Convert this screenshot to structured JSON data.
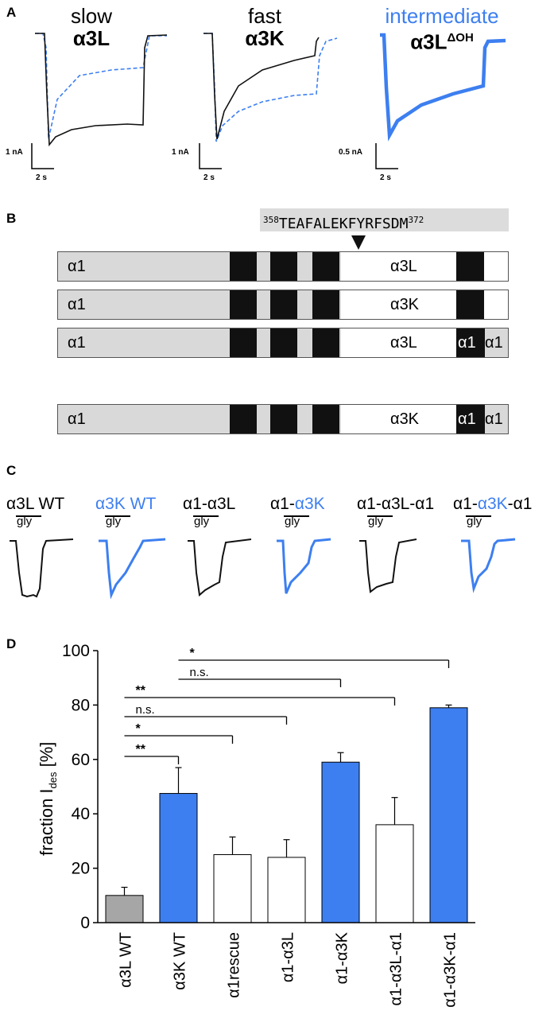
{
  "panelA": {
    "letter": "A",
    "titles": [
      {
        "top": "slow",
        "bottom": "α3L"
      },
      {
        "top": "fast",
        "bottom": "α3K"
      },
      {
        "top": "intermediate",
        "bottom": "α3L",
        "sup": "ΔOH"
      }
    ],
    "scales": [
      {
        "current": "1 nA",
        "time": "2 s"
      },
      {
        "current": "1 nA",
        "time": "2 s"
      },
      {
        "current": "0.5 nA",
        "time": "2 s"
      }
    ]
  },
  "panelB": {
    "letter": "B",
    "sequence": {
      "start": "358",
      "residues": "TEAFALEKFYRFSDM",
      "end": "372"
    },
    "rows": [
      {
        "left": "α1",
        "right": "α3L"
      },
      {
        "left": "α1",
        "right": "α3K"
      },
      {
        "left": "α1",
        "right": "α3L",
        "tail1": "α1",
        "tail2": "α1"
      },
      {
        "left": "α1",
        "right": "α3K",
        "tail1": "α1",
        "tail2": "α1"
      }
    ]
  },
  "panelC": {
    "letter": "C",
    "stimulus": "gly",
    "traces": [
      {
        "pre": "α3L WT",
        "mid": "",
        "post": ""
      },
      {
        "pre": "",
        "mid": "α3K WT",
        "post": ""
      },
      {
        "pre": "α1-α3L",
        "mid": "",
        "post": ""
      },
      {
        "pre": "α1-",
        "mid": "α3K",
        "post": ""
      },
      {
        "pre": "α1-α3L-α1",
        "mid": "",
        "post": ""
      },
      {
        "pre": "α1-",
        "mid": "α3K",
        "post": "-α1"
      }
    ]
  },
  "colors": {
    "blue": "#3d7ff0",
    "grey": "#a6a6a6",
    "black": "#000000"
  },
  "panelD": {
    "letter": "D",
    "ylabel_main": "fraction I",
    "ylabel_sub": "des",
    "ylabel_unit": "[%]",
    "chart_data": {
      "type": "bar",
      "categories": [
        "α3L WT",
        "α3K WT",
        "α1rescue",
        "α1-α3L",
        "α1-α3K",
        "α1-α3L-α1",
        "α1-α3K-α1"
      ],
      "values": [
        10,
        47.5,
        25,
        24,
        59,
        36,
        79
      ],
      "errors": [
        3,
        9.5,
        6.5,
        6.5,
        3.5,
        10,
        1
      ],
      "bar_colors": [
        "grey",
        "blue",
        "white",
        "white",
        "blue",
        "white",
        "blue"
      ],
      "ylim": [
        0,
        100
      ],
      "yticks": [
        0,
        20,
        40,
        60,
        80,
        100
      ],
      "significance": [
        {
          "from": 1,
          "to": 6,
          "label": "*"
        },
        {
          "from": 1,
          "to": 4,
          "label": "n.s."
        },
        {
          "from": 0,
          "to": 5,
          "label": "**"
        },
        {
          "from": 0,
          "to": 3,
          "label": "n.s."
        },
        {
          "from": 0,
          "to": 2,
          "label": "*"
        },
        {
          "from": 0,
          "to": 1,
          "label": "**"
        }
      ]
    }
  }
}
